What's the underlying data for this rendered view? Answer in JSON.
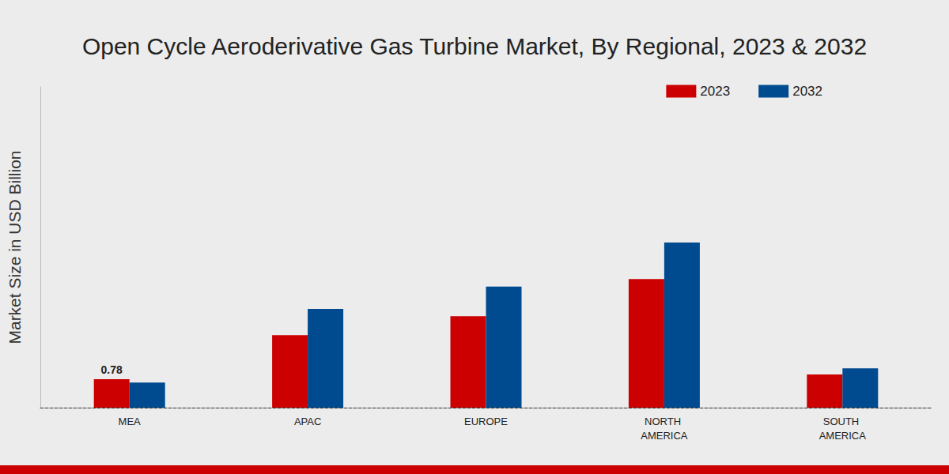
{
  "chart_data": {
    "type": "bar",
    "title": "Open Cycle Aeroderivative Gas Turbine Market, By Regional, 2023 & 2032",
    "y_label": "Market Size in USD Billion",
    "categories": [
      "MEA",
      "APAC",
      "EUROPE",
      "NORTH AMERICA",
      "SOUTH AMERICA"
    ],
    "series": [
      {
        "name": "2023",
        "color": "#cc0000",
        "values": [
          0.78,
          1.99,
          2.51,
          3.53,
          0.91
        ]
      },
      {
        "name": "2032",
        "color": "#004a8f",
        "values": [
          0.69,
          2.71,
          3.32,
          4.53,
          1.08
        ]
      }
    ],
    "ylim": [
      0,
      8.8
    ],
    "tick_labels": "x",
    "grid": false,
    "legend": "top right",
    "annotations": [
      {
        "text": "0.78",
        "category": "MEA",
        "series": "2023"
      }
    ]
  }
}
